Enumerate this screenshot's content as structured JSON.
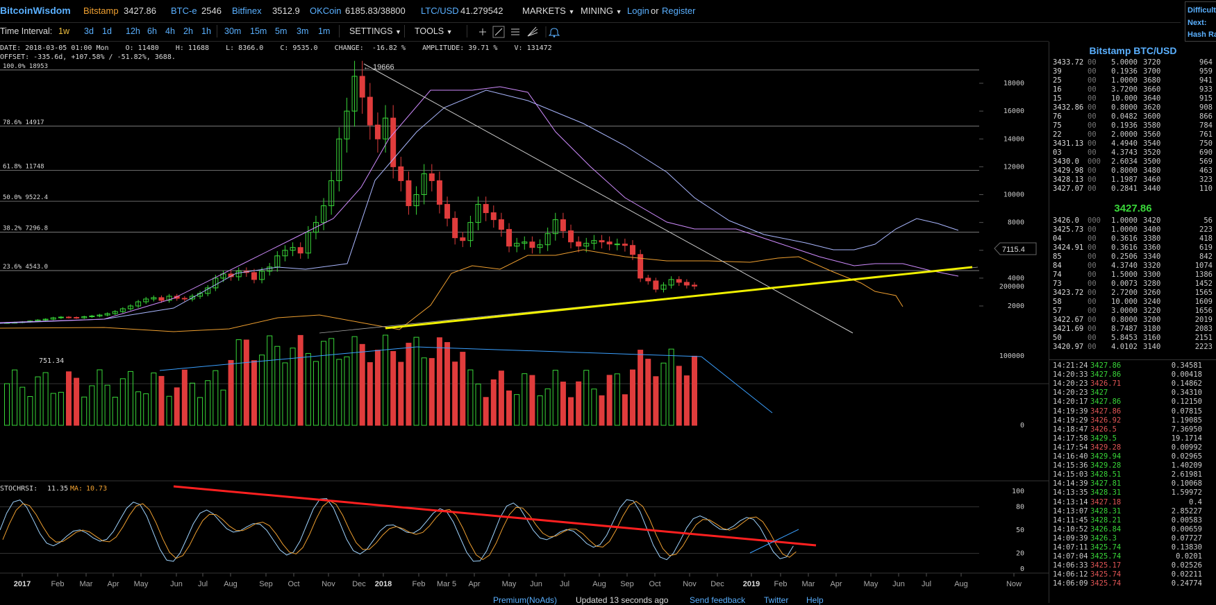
{
  "header": {
    "logo": "BitcoinWisdom",
    "tickers": [
      {
        "name": "Bitstamp",
        "price": "3427.86"
      },
      {
        "name": "BTC-e",
        "price": "2546"
      },
      {
        "name": "Bitfinex",
        "price": "3512.9"
      },
      {
        "name": "OKCoin",
        "price": "6185.83/38800"
      },
      {
        "name": "LTC/USD",
        "price": "41.279542"
      }
    ],
    "menus": [
      "MARKETS",
      "MINING"
    ],
    "login": "Login",
    "or": "or",
    "register": "Register"
  },
  "rightbox": [
    "Difficult",
    "Next:",
    "Hash Ra"
  ],
  "toolbar": {
    "label": "Time Interval:",
    "intervals": [
      "1w",
      "3d",
      "1d",
      "12h",
      "6h",
      "4h",
      "2h",
      "1h",
      "30m",
      "15m",
      "5m",
      "3m",
      "1m"
    ],
    "active": "1w",
    "settings": "SETTINGS",
    "tools": "TOOLS"
  },
  "info": {
    "line1": "DATE: 2018-03-05 01:00 Mon    O: 11480    H: 11688    L: 8366.0    C: 9535.0    CHANGE:  -16.82 %    AMPLITUDE: 39.71 %    V: 131472",
    "line2": "OFFSET: -335.6d, +107.58% / -51.82%, 3688."
  },
  "chart_data": {
    "type": "candlestick",
    "price_axis": [
      "18000",
      "16000",
      "14000",
      "12000",
      "10000",
      "8000",
      "6000",
      "4000",
      "2000"
    ],
    "crosshair_price": "7115.4",
    "peak_label": "19666",
    "low_label": "751.34",
    "fib_levels": [
      {
        "label": "100.0% 18953",
        "value": 18953
      },
      {
        "label": "78.6% 14917",
        "value": 14917
      },
      {
        "label": "61.8% 11748",
        "value": 11748
      },
      {
        "label": "50.0% 9522.4",
        "value": 9522.4
      },
      {
        "label": "38.2% 7296.8",
        "value": 7296.8
      },
      {
        "label": "23.6% 4543.0",
        "value": 4543.0
      }
    ],
    "volume_axis": [
      "200000",
      "100000",
      "0"
    ],
    "stochrsi": {
      "label": "STOCHRSI:",
      "value": "11.35",
      "ma_label": "MA:",
      "ma_value": "10.73"
    },
    "stoch_axis": [
      "100",
      "80",
      "50",
      "20",
      "0"
    ],
    "time_axis": [
      "2017",
      "Feb",
      "Mar",
      "Apr",
      "May",
      "Jun",
      "Jul",
      "Aug",
      "Sep",
      "Oct",
      "Nov",
      "Dec",
      "2018",
      "Feb",
      "Mar 5",
      "Apr",
      "May",
      "Jun",
      "Jul",
      "Aug",
      "Sep",
      "Oct",
      "Nov",
      "Dec",
      "2019",
      "Feb",
      "Mar",
      "Apr",
      "May",
      "Jun",
      "Jul",
      "Aug",
      "Now"
    ]
  },
  "orderbook": {
    "title": "Bitstamp BTC/USD",
    "last_price": "3427.86",
    "asks": [
      [
        "3433.72",
        "00",
        "5.0000",
        "3720",
        "964"
      ],
      [
        "39",
        "00",
        "0.1936",
        "3700",
        "959"
      ],
      [
        "25",
        "00",
        "1.0000",
        "3680",
        "941"
      ],
      [
        "16",
        "00",
        "3.7200",
        "3660",
        "933"
      ],
      [
        "15",
        "00",
        "10.000",
        "3640",
        "915"
      ],
      [
        "3432.86",
        "00",
        "0.8000",
        "3620",
        "908"
      ],
      [
        "76",
        "00",
        "0.0482",
        "3600",
        "866"
      ],
      [
        "75",
        "00",
        "0.1936",
        "3580",
        "784"
      ],
      [
        "22",
        "00",
        "2.0000",
        "3560",
        "761"
      ],
      [
        "3431.13",
        "00",
        "4.4940",
        "3540",
        "750"
      ],
      [
        "03",
        "00",
        "4.3743",
        "3520",
        "690"
      ],
      [
        "3430.0",
        "000",
        "2.6034",
        "3500",
        "569"
      ],
      [
        "3429.98",
        "00",
        "0.8000",
        "3480",
        "463"
      ],
      [
        "3428.13",
        "00",
        "1.1987",
        "3460",
        "323"
      ],
      [
        "3427.07",
        "00",
        "0.2841",
        "3440",
        "110"
      ]
    ],
    "bids": [
      [
        "3426.0",
        "000",
        "1.0000",
        "3420",
        "56"
      ],
      [
        "3425.73",
        "00",
        "1.0000",
        "3400",
        "223"
      ],
      [
        "04",
        "00",
        "0.3616",
        "3380",
        "418"
      ],
      [
        "3424.91",
        "00",
        "0.3616",
        "3360",
        "619"
      ],
      [
        "85",
        "00",
        "0.2506",
        "3340",
        "842"
      ],
      [
        "84",
        "00",
        "4.3740",
        "3320",
        "1074"
      ],
      [
        "74",
        "00",
        "1.5000",
        "3300",
        "1386"
      ],
      [
        "73",
        "00",
        "0.0073",
        "3280",
        "1452"
      ],
      [
        "3423.72",
        "00",
        "2.7200",
        "3260",
        "1565"
      ],
      [
        "58",
        "00",
        "10.000",
        "3240",
        "1609"
      ],
      [
        "57",
        "00",
        "3.0000",
        "3220",
        "1656"
      ],
      [
        "3422.67",
        "00",
        "0.8000",
        "3200",
        "2019"
      ],
      [
        "3421.69",
        "00",
        "8.7487",
        "3180",
        "2083"
      ],
      [
        "50",
        "00",
        "5.8453",
        "3160",
        "2151"
      ],
      [
        "3420.97",
        "00",
        "4.0102",
        "3140",
        "2223"
      ]
    ]
  },
  "trades": [
    [
      "14:21:24",
      "3427.86",
      "0.34581",
      "up"
    ],
    [
      "14:20:33",
      "3427.86",
      "0.00418",
      "up"
    ],
    [
      "14:20:23",
      "3426.71",
      "0.14862",
      "down"
    ],
    [
      "14:20:23",
      "3427",
      "0.34310",
      "up"
    ],
    [
      "14:20:17",
      "3427.86",
      "0.12150",
      "up"
    ],
    [
      "14:19:39",
      "3427.86",
      "0.07815",
      "down"
    ],
    [
      "14:19:29",
      "3426.92",
      "1.19085",
      "down"
    ],
    [
      "14:18:47",
      "3426.5",
      "7.36950",
      "down"
    ],
    [
      "14:17:58",
      "3429.5",
      "19.1714",
      "up"
    ],
    [
      "14:17:54",
      "3429.28",
      "0.00992",
      "down"
    ],
    [
      "14:16:40",
      "3429.94",
      "0.02965",
      "up"
    ],
    [
      "14:15:36",
      "3429.28",
      "1.40209",
      "up"
    ],
    [
      "14:15:03",
      "3428.51",
      "2.61981",
      "up"
    ],
    [
      "14:14:39",
      "3427.81",
      "0.10068",
      "up"
    ],
    [
      "14:13:35",
      "3428.31",
      "1.59972",
      "up"
    ],
    [
      "14:13:14",
      "3427.18",
      "0.4",
      "down"
    ],
    [
      "14:13:07",
      "3428.31",
      "2.85227",
      "up"
    ],
    [
      "14:11:45",
      "3428.21",
      "0.00583",
      "up"
    ],
    [
      "14:10:52",
      "3426.84",
      "0.00659",
      "up"
    ],
    [
      "14:09:39",
      "3426.3",
      "0.07727",
      "up"
    ],
    [
      "14:07:11",
      "3425.74",
      "0.13830",
      "up"
    ],
    [
      "14:07:04",
      "3425.74",
      "0.0201",
      "up"
    ],
    [
      "14:06:33",
      "3425.17",
      "0.02526",
      "down"
    ],
    [
      "14:06:12",
      "3425.74",
      "0.02211",
      "down"
    ],
    [
      "14:06:09",
      "3425.74",
      "0.24774",
      "down"
    ]
  ],
  "footer": {
    "premium": "Premium(NoAds)",
    "updated": "Updated 13 seconds ago",
    "feedback": "Send feedback",
    "twitter": "Twitter",
    "help": "Help"
  },
  "colors": {
    "up": "#39d739",
    "down": "#e03c3c",
    "accent": "#5ab0ff",
    "yellow": "#f0f000"
  }
}
